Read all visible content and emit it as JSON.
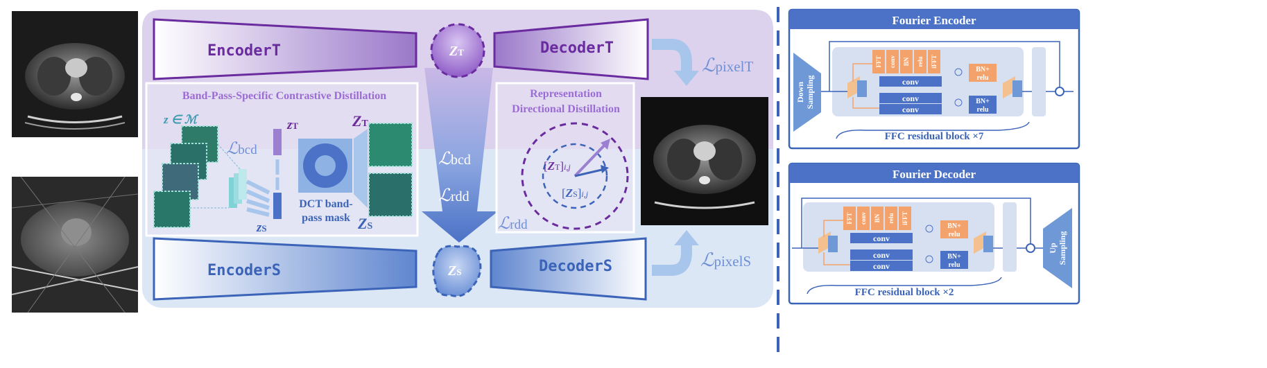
{
  "main": {
    "encoder_t": "EncoderT",
    "decoder_t": "DecoderT",
    "encoder_s": "EncoderS",
    "decoder_s": "DecoderS",
    "z_t": "Z",
    "z_t_sub": "T",
    "z_s": "Z",
    "z_s_sub": "S",
    "loss_bcd_center": "bcd",
    "loss_rdd_center": "rdd",
    "loss_pixel_t": "pixelT",
    "loss_pixel_s": "pixelS",
    "loss_rdd_right": "rdd",
    "loss_symbol": "ℒ"
  },
  "bcd_panel": {
    "title": "Band-Pass-Specific Contrastive Distillation",
    "z_in_m": "z ∈ ℳ",
    "loss_bcd": "bcd",
    "z_t_small": "z",
    "z_t_small_sub": "T",
    "z_s_small": "z",
    "z_s_small_sub": "S",
    "dct_line1": "DCT band-",
    "dct_line2": "pass mask",
    "big_z_t": "Z",
    "big_z_t_sub": "T",
    "big_z_s": "Z",
    "big_z_s_sub": "S"
  },
  "rdd_panel": {
    "title_line1": "Representation",
    "title_line2": "Directional Distillation",
    "zt_ij_z": "Z",
    "zt_ij_sub": "T",
    "zt_ij_idx": "i,j",
    "zs_ij_z": "Z",
    "zs_ij_sub": "S",
    "zs_ij_idx": "i,j"
  },
  "fourier_encoder": {
    "title": "Fourier Encoder",
    "down_sampling_line1": "Down",
    "down_sampling_line2": "Sampling",
    "ops": [
      "FFT",
      "conv",
      "BN",
      "relu",
      "iFFT"
    ],
    "conv": "conv",
    "bn_relu_line1": "BN+",
    "bn_relu_line2": "relu",
    "residual": "FFC residual block ×7"
  },
  "fourier_decoder": {
    "title": "Fourier Decoder",
    "up_sampling_line1": "Up",
    "up_sampling_line2": "Sampling",
    "ops": [
      "FFT",
      "conv",
      "BN",
      "relu",
      "iFFT"
    ],
    "conv": "conv",
    "bn_relu_line1": "BN+",
    "bn_relu_line2": "relu",
    "residual": "FFC residual block ×2"
  },
  "colors": {
    "purple": "#6a2b9e",
    "blue": "#3b63b8",
    "light_blue_text": "#6f8fd6",
    "orange": "#f4a26b",
    "panel_purple": "#ddd3ee",
    "panel_blue": "#dde8f6"
  }
}
